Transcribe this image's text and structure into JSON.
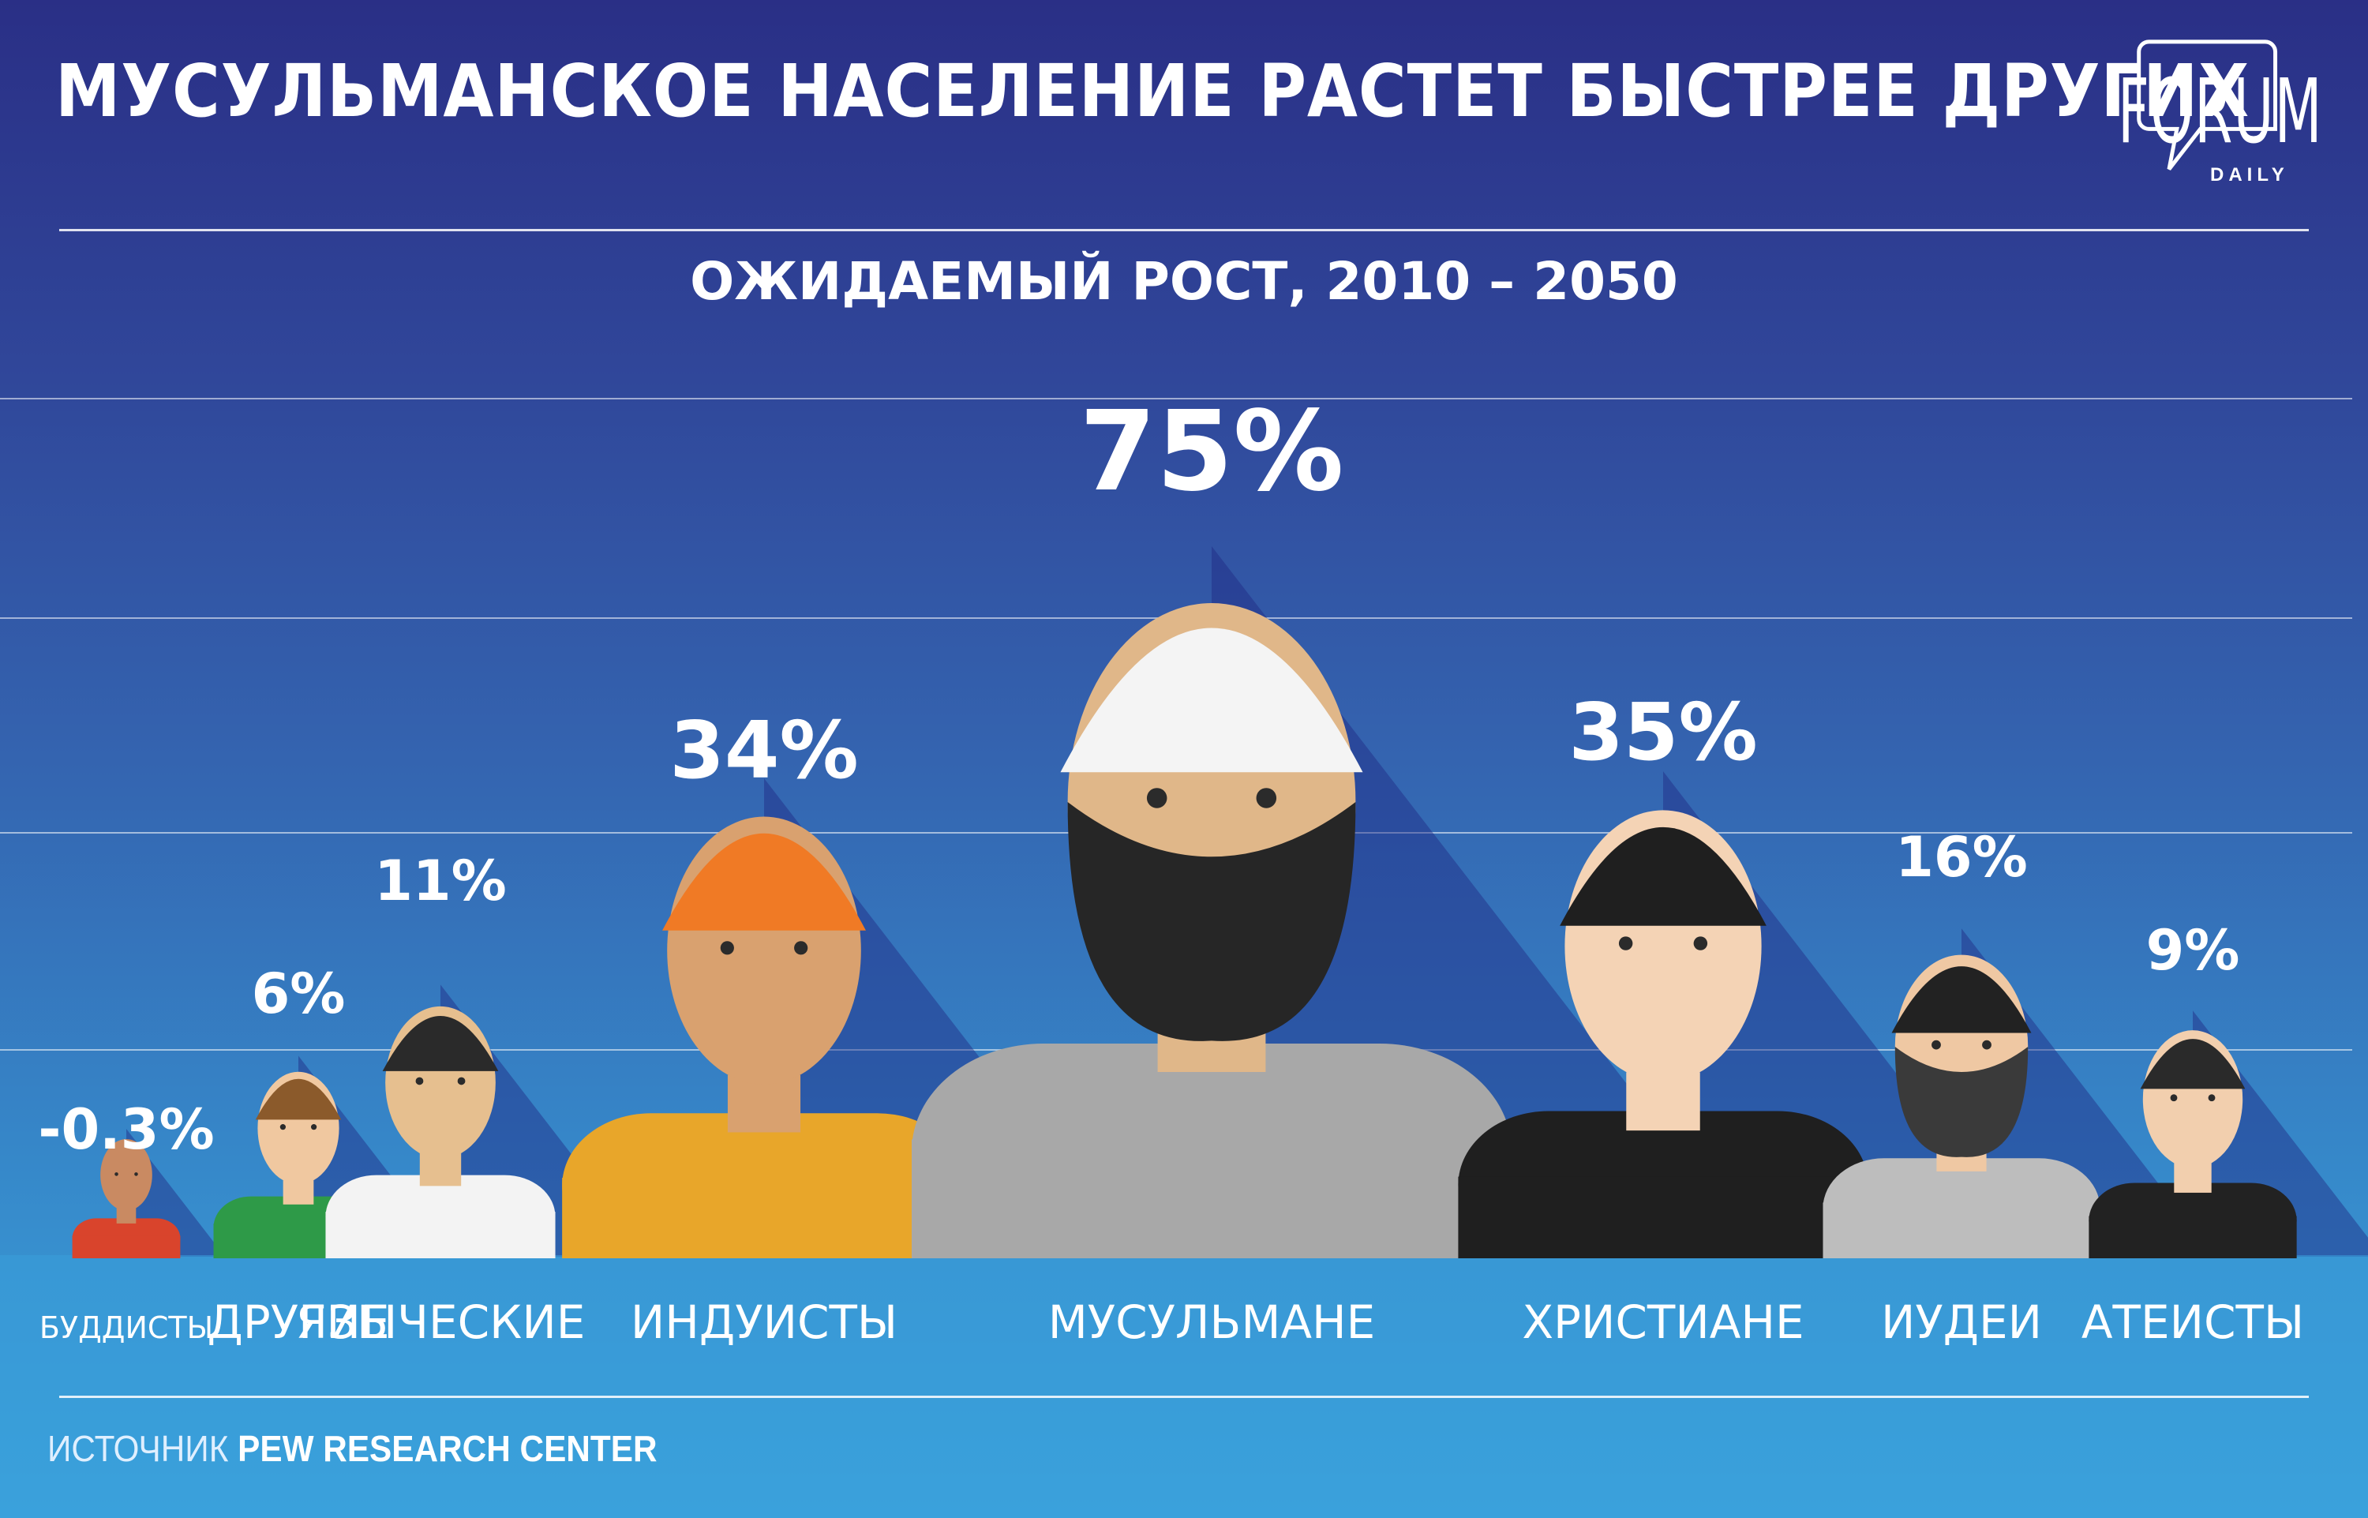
{
  "title": "МУСУЛЬМАНСКОЕ НАСЕЛЕНИЕ РАСТЕТ БЫСТРЕЕ ДРУГИХ",
  "subtitle": "ОЖИДАЕМЫЙ РОСТ, 2010 – 2050",
  "logo": {
    "main": "FORUM",
    "sub": "DAILY"
  },
  "source": {
    "prefix": "ИСТОЧНИК",
    "name": "PEW RESEARCH CENTER"
  },
  "colors": {
    "bg_top": "#2a2f86",
    "bg_bottom": "#3aa5dd",
    "text": "#ffffff"
  },
  "chart_data": {
    "type": "bar",
    "title": "ОЖИДАЕМЫЙ РОСТ, 2010 – 2050",
    "categories": [
      "БУДДИСТЫ",
      "ДРУГИЕ",
      "ЯЗЫЧЕСКИЕ",
      "ИНДУИСТЫ",
      "МУСУЛЬМАНЕ",
      "ХРИСТИАНЕ",
      "ИУДЕИ",
      "АТЕИСТЫ"
    ],
    "values": [
      -0.3,
      6,
      11,
      34,
      75,
      35,
      16,
      9
    ],
    "value_labels": [
      "-0.3%",
      "6%",
      "11%",
      "34%",
      "75%",
      "35%",
      "16%",
      "9%"
    ],
    "marks": [
      "person-icon",
      "person-icon",
      "person-icon",
      "person-icon",
      "person-icon",
      "person-icon",
      "person-icon",
      "person-icon"
    ],
    "grid": true,
    "ylim": [
      0,
      80
    ]
  }
}
